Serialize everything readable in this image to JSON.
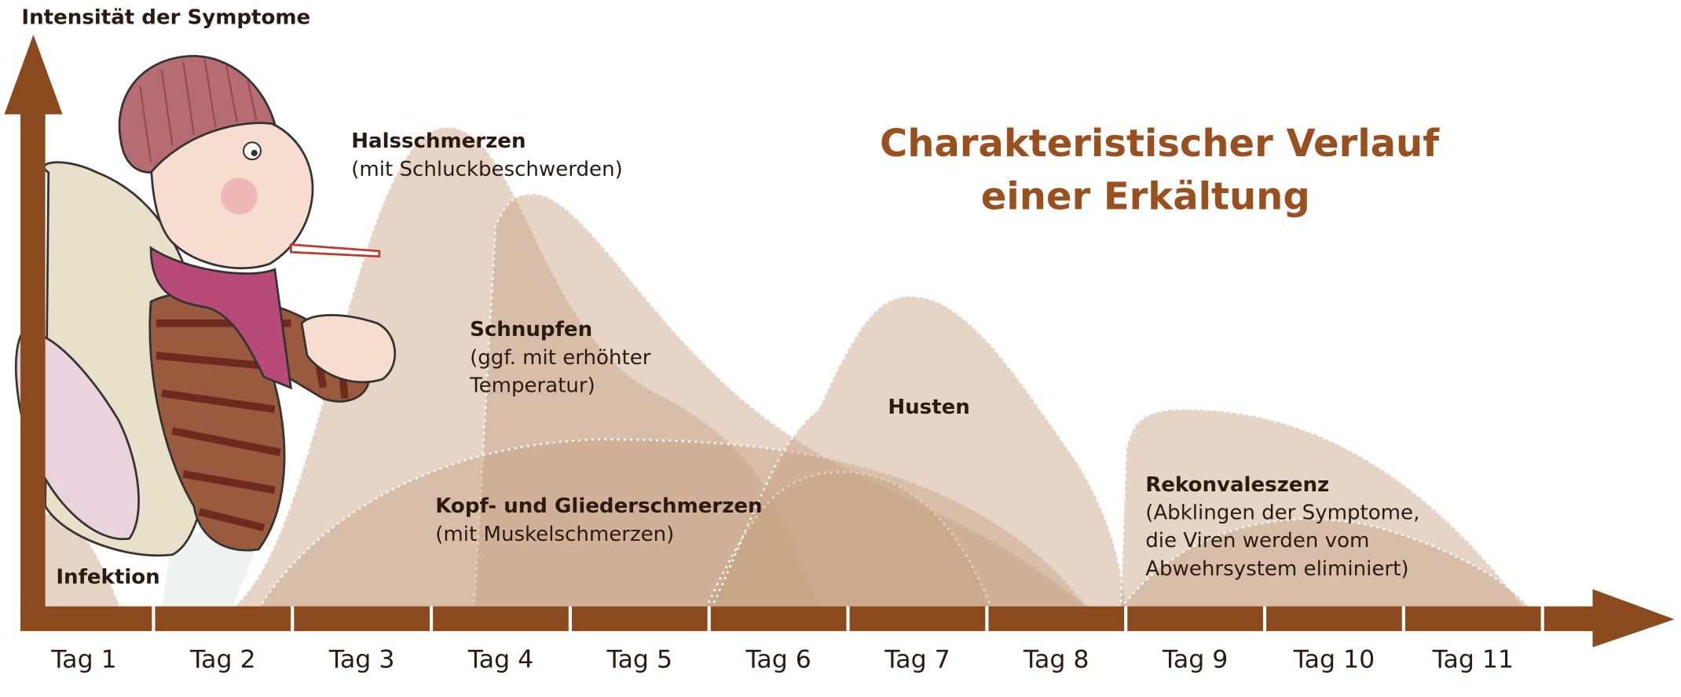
{
  "y_axis_label": "Intensität der Symptome",
  "title": [
    "Charakteristischer Verlauf",
    "einer Erkältung"
  ],
  "days": [
    "Tag 1",
    "Tag 2",
    "Tag 3",
    "Tag 4",
    "Tag 5",
    "Tag 6",
    "Tag 7",
    "Tag 8",
    "Tag 9",
    "Tag 10",
    "Tag 11"
  ],
  "phases": [
    {
      "name": "Infektion"
    },
    {
      "name": "Halsschmerzen",
      "description": [
        "(mit Schluckbeschwerden)"
      ]
    },
    {
      "name": "Schnupfen",
      "description": [
        "(ggf. mit erhöhter",
        "Temperatur)"
      ]
    },
    {
      "name": "Kopf- und Gliederschmerzen",
      "description": [
        "(mit Muskelschmerzen)"
      ]
    },
    {
      "name": "Husten"
    },
    {
      "name": "Rekonvaleszenz",
      "description": [
        "(Abklingen der Symptome,",
        "die Viren werden vom",
        "Abwehrsystem eliminiert)"
      ]
    }
  ]
}
